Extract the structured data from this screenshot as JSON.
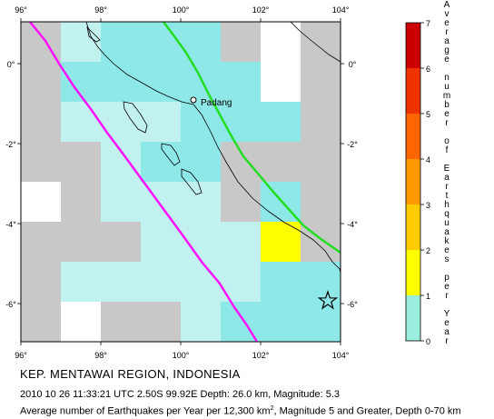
{
  "map": {
    "lon_ticks": [
      "96°",
      "98°",
      "100°",
      "102°",
      "104°"
    ],
    "lat_ticks": [
      "0°",
      "-2°",
      "-4°",
      "-6°"
    ],
    "city_label": "Padang",
    "epicenter": {
      "lon": 99.92,
      "lat": -2.5
    },
    "colors": {
      "grey": "#c8c8c8",
      "cyan_dark": "#8fe8e8",
      "cyan_light": "#c2f2ef",
      "yellow": "#ffff00",
      "green_line": "#22dd22",
      "magenta_line": "#ff11ff"
    }
  },
  "scale": {
    "values": [
      "0",
      "1",
      "2",
      "3",
      "4",
      "5",
      "6",
      "7"
    ],
    "title_letters": [
      "A",
      "v",
      "e",
      "r",
      "a",
      "g",
      "e",
      " ",
      "n",
      "u",
      "m",
      "b",
      "e",
      "r",
      " ",
      "o",
      "f",
      " ",
      "E",
      "a",
      "r",
      "t",
      "h",
      "q",
      "u",
      "a",
      "k",
      "e",
      "s",
      " ",
      "p",
      "e",
      "r",
      " ",
      "Y",
      "e",
      "a",
      "r"
    ]
  },
  "caption": {
    "title": "KEP. MENTAWAI REGION, INDONESIA",
    "event": "2010 10 26 11:33:21 UTC 2.50S 99.92E Depth: 26.0 km, Magnitude: 5.3",
    "desc_prefix": "Average number of Earthquakes per Year per 12,300 km",
    "desc_sup": "2",
    "desc_suffix": ", Magnitude 5 and Greater, Depth 0-70 km"
  }
}
